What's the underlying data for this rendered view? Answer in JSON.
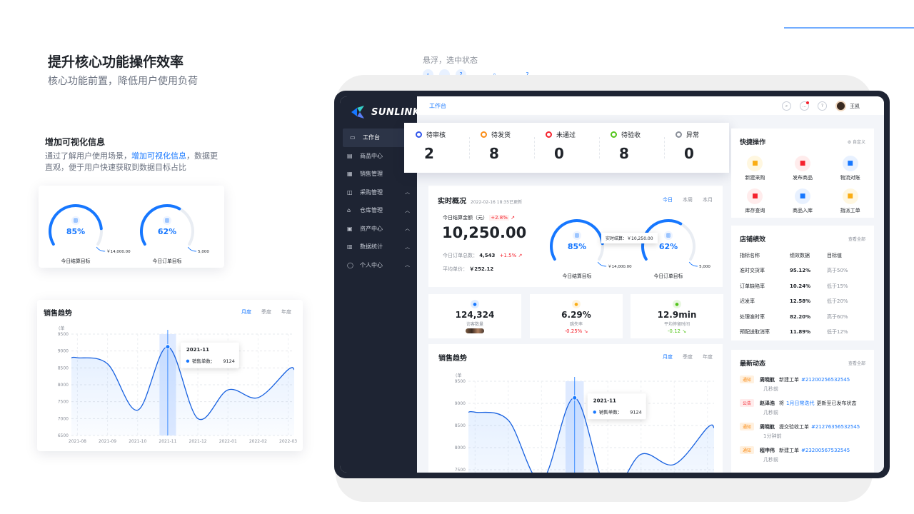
{
  "left": {
    "title": "提升核心功能操作效率",
    "subtitle": "核心功能前置，降低用户使用负荷",
    "visual_section": {
      "title": "增加可视化信息",
      "desc_before": "通过了解用户使用场景，",
      "desc_highlight": "增加可视化信息",
      "desc_after": "，数据更直观，便于用户快速获取到数据目标占比"
    },
    "gauges": [
      {
        "label": "今日结算目标",
        "percent": "85%",
        "target": "￥14,000.00",
        "value": 0.85
      },
      {
        "label": "今日订单目标",
        "percent": "62%",
        "target": "5,000",
        "value": 0.62
      }
    ],
    "trend": {
      "title": "销售趋势",
      "tabs": [
        "月度",
        "季度",
        "年度"
      ]
    }
  },
  "hover": {
    "label": "悬浮，选中状态"
  },
  "app": {
    "brand": "SUNLINK",
    "breadcrumb": "工作台",
    "user": "王凯",
    "menu": [
      {
        "label": "工作台",
        "icon": "monitor-icon"
      },
      {
        "label": "商品中心",
        "icon": "bag-icon"
      },
      {
        "label": "销售管理",
        "icon": "doc-icon"
      },
      {
        "label": "采购管理",
        "icon": "box-icon"
      },
      {
        "label": "仓库管理",
        "icon": "house-icon"
      },
      {
        "label": "资产中心",
        "icon": "wallet-icon"
      },
      {
        "label": "数据统计",
        "icon": "chart-icon"
      },
      {
        "label": "个人中心",
        "icon": "user-icon"
      }
    ],
    "status": [
      {
        "label": "待审核",
        "value": "2",
        "color": "#2f54eb"
      },
      {
        "label": "待发货",
        "value": "8",
        "color": "#fa8c16"
      },
      {
        "label": "未通过",
        "value": "0",
        "color": "#f5222d"
      },
      {
        "label": "待验收",
        "value": "8",
        "color": "#52c41a"
      },
      {
        "label": "异常",
        "value": "0",
        "color": "#8a8f99"
      }
    ],
    "overview": {
      "title": "实时概况",
      "updated": "2022-02-16 18:35已更新",
      "tabs": [
        "今日",
        "本周",
        "本月"
      ],
      "amount_label": "今日结算金额（元）",
      "amount_change": "+2.8%",
      "amount": "10,250.00",
      "orders_label": "今日订单总数：",
      "orders": "4,543",
      "orders_change": "+1.5%",
      "avg_label": "平均单价：",
      "avg": "￥252.12",
      "tooltip_label": "实时结算：",
      "tooltip_value": "￥10,250.00"
    },
    "metrics": [
      {
        "value": "124,324",
        "label": "访客数量",
        "delta": "",
        "color": "#1677ff"
      },
      {
        "value": "6.29%",
        "label": "跳失率",
        "delta": "-0.25%",
        "color": "#faad14"
      },
      {
        "value": "12.9min",
        "label": "平均停留时间",
        "delta": "-0.12",
        "color": "#52c41a"
      }
    ],
    "quick": {
      "title": "快捷操作",
      "custom": "自定义",
      "items": [
        {
          "label": "新建采购",
          "icon": "cart-icon",
          "bg": "#fff7e0",
          "fg": "#faad14"
        },
        {
          "label": "发布商品",
          "icon": "gift-icon",
          "bg": "#ffecec",
          "fg": "#f5222d"
        },
        {
          "label": "物流对账",
          "icon": "truck-icon",
          "bg": "#e8f1ff",
          "fg": "#1677ff"
        },
        {
          "label": "库存查询",
          "icon": "search-box-icon",
          "bg": "#ffecec",
          "fg": "#f5222d"
        },
        {
          "label": "商品入库",
          "icon": "bell-icon",
          "bg": "#e8f1ff",
          "fg": "#1677ff"
        },
        {
          "label": "指派工单",
          "icon": "pin-icon",
          "bg": "#fff7e0",
          "fg": "#faad14"
        }
      ]
    },
    "perf": {
      "title": "店铺绩效",
      "more": "查看全部",
      "headers": [
        "指标名称",
        "绩效数据",
        "目标值"
      ],
      "rows": [
        [
          "准时交货率",
          "95.12%",
          "高于50%"
        ],
        [
          "订单缺陷率",
          "10.24%",
          "低于15%"
        ],
        [
          "迟发率",
          "12.58%",
          "低于20%"
        ],
        [
          "处理准时率",
          "82.20%",
          "高于60%"
        ],
        [
          "预配送取消率",
          "11.89%",
          "低于12%"
        ]
      ]
    },
    "news": {
      "title": "最新动态",
      "more": "查看全部",
      "items": [
        {
          "tag": "通知",
          "name": "周晓航",
          "action": "新建工单",
          "link": "#21200256532545",
          "extra": "",
          "time": "几秒前"
        },
        {
          "tag": "公告",
          "name": "赵泽浩",
          "action": "将",
          "link": "1月日常迭代",
          "extra": "更新至已发布状态",
          "time": "几秒前"
        },
        {
          "tag": "通知",
          "name": "周晓航",
          "action": "提交验收工单",
          "link": "#21276356532545",
          "extra": "",
          "time": "1分钟前"
        },
        {
          "tag": "通知",
          "name": "程申伟",
          "action": "新建工单",
          "link": "#23200567532545",
          "extra": "",
          "time": "几秒前"
        }
      ]
    },
    "trend_title": "销售趋势"
  },
  "chart_data": {
    "type": "area",
    "title": "销售趋势",
    "ylabel": "(单",
    "categories": [
      "2021-08",
      "2021-09",
      "2021-10",
      "2021-11",
      "2021-12",
      "2022-01",
      "2022-02",
      "2022-03"
    ],
    "series": [
      {
        "name": "销售单数",
        "values": [
          8800,
          8620,
          7250,
          9124,
          7000,
          7850,
          7620,
          8450
        ]
      }
    ],
    "ylim": [
      6500,
      9500
    ],
    "yticks": [
      6500,
      7000,
      7500,
      8000,
      8500,
      9000,
      9500
    ],
    "ytick_labels": [
      "6500",
      "7000",
      "7500",
      "8000",
      "8500",
      "9000",
      "9500"
    ],
    "tooltip": {
      "category": "2021-11",
      "label": "销售单数：",
      "value": "9124"
    },
    "grid": true
  }
}
